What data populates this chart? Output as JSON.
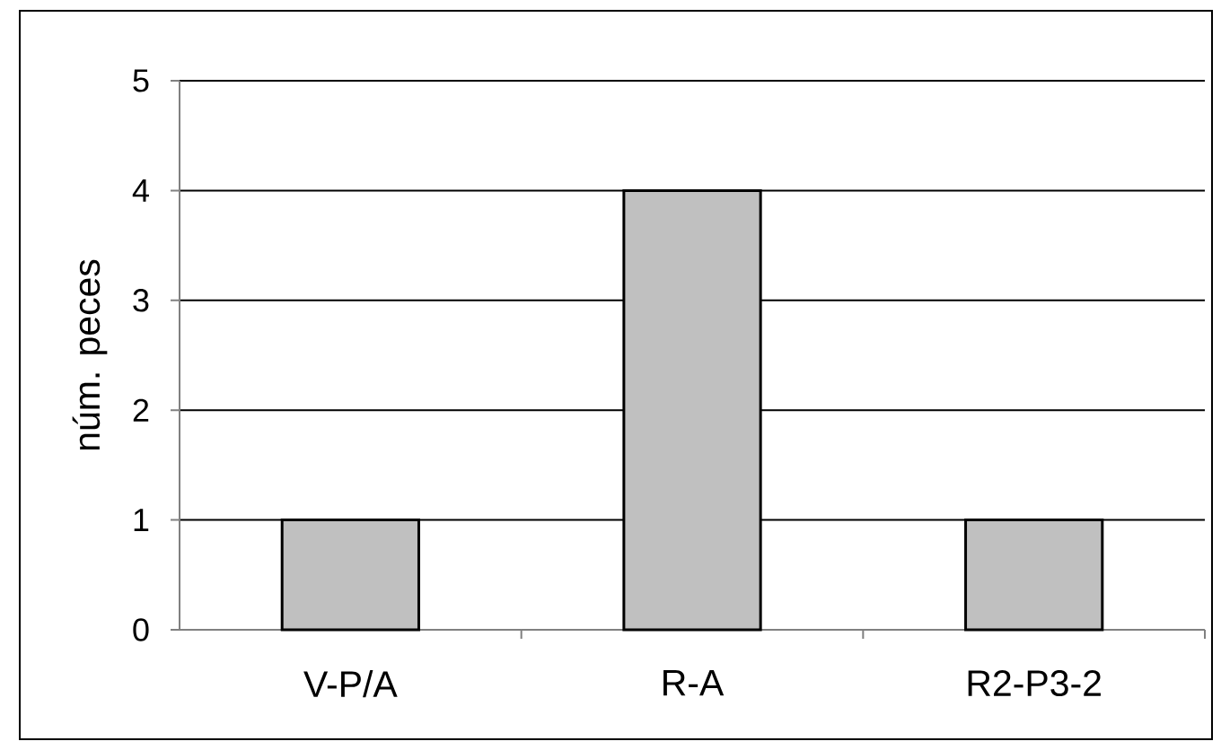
{
  "chart_data": {
    "type": "bar",
    "ylabel": "núm. peces",
    "categories": [
      "V-P/A",
      "R-A",
      "R2-P3-2"
    ],
    "values": [
      1,
      4,
      1
    ],
    "color": "#c0c0c0",
    "ylim": [
      0,
      5
    ],
    "yticks": [
      0,
      1,
      2,
      3,
      4,
      5
    ],
    "grid": "y"
  }
}
